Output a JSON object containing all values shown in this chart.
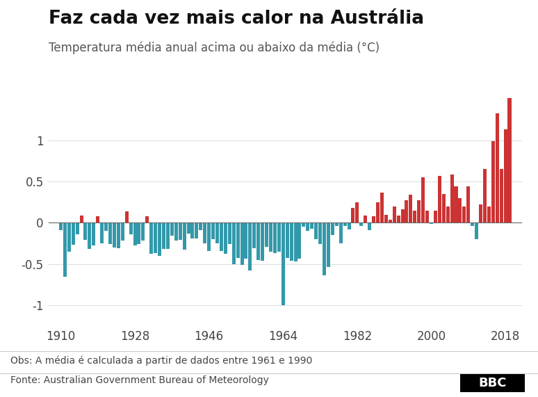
{
  "title": "Faz cada vez mais calor na Austrália",
  "subtitle": "Temperatura média anual acima ou abaixo da média (°C)",
  "note": "Obs: A média é calculada a partir de dados entre 1961 e 1990",
  "source": "Fonte: Australian Government Bureau of Meteorology",
  "logo": "BBC",
  "years": [
    1910,
    1911,
    1912,
    1913,
    1914,
    1915,
    1916,
    1917,
    1918,
    1919,
    1920,
    1921,
    1922,
    1923,
    1924,
    1925,
    1926,
    1927,
    1928,
    1929,
    1930,
    1931,
    1932,
    1933,
    1934,
    1935,
    1936,
    1937,
    1938,
    1939,
    1940,
    1941,
    1942,
    1943,
    1944,
    1945,
    1946,
    1947,
    1948,
    1949,
    1950,
    1951,
    1952,
    1953,
    1954,
    1955,
    1956,
    1957,
    1958,
    1959,
    1960,
    1961,
    1962,
    1963,
    1964,
    1965,
    1966,
    1967,
    1968,
    1969,
    1970,
    1971,
    1972,
    1973,
    1974,
    1975,
    1976,
    1977,
    1978,
    1979,
    1980,
    1981,
    1982,
    1983,
    1984,
    1985,
    1986,
    1987,
    1988,
    1989,
    1990,
    1991,
    1992,
    1993,
    1994,
    1995,
    1996,
    1997,
    1998,
    1999,
    2000,
    2001,
    2002,
    2003,
    2004,
    2005,
    2006,
    2007,
    2008,
    2009,
    2010,
    2011,
    2012,
    2013,
    2014,
    2015,
    2016,
    2017,
    2018,
    2019
  ],
  "anomalies": [
    -0.09,
    -0.66,
    -0.35,
    -0.27,
    -0.14,
    0.09,
    -0.21,
    -0.32,
    -0.28,
    0.08,
    -0.25,
    -0.1,
    -0.26,
    -0.3,
    -0.31,
    -0.22,
    0.14,
    -0.14,
    -0.28,
    -0.26,
    -0.22,
    0.08,
    -0.38,
    -0.37,
    -0.4,
    -0.32,
    -0.32,
    -0.16,
    -0.22,
    -0.21,
    -0.33,
    -0.13,
    -0.19,
    -0.19,
    -0.09,
    -0.25,
    -0.34,
    -0.2,
    -0.25,
    -0.34,
    -0.38,
    -0.26,
    -0.5,
    -0.43,
    -0.51,
    -0.44,
    -0.58,
    -0.31,
    -0.45,
    -0.46,
    -0.29,
    -0.35,
    -0.37,
    -0.35,
    -1.0,
    -0.43,
    -0.46,
    -0.47,
    -0.44,
    -0.05,
    -0.1,
    -0.07,
    -0.2,
    -0.26,
    -0.64,
    -0.54,
    -0.15,
    -0.04,
    -0.25,
    -0.04,
    -0.08,
    0.18,
    0.25,
    -0.04,
    0.09,
    -0.09,
    0.08,
    0.25,
    0.37,
    0.1,
    0.04,
    0.2,
    0.09,
    0.16,
    0.27,
    0.34,
    0.15,
    0.27,
    0.55,
    0.15,
    -0.01,
    0.15,
    0.57,
    0.35,
    0.2,
    0.59,
    0.44,
    0.3,
    0.2,
    0.44,
    -0.04,
    -0.2,
    0.22,
    0.65,
    0.2,
    0.99,
    1.33,
    0.65,
    1.14,
    1.52
  ],
  "color_positive": "#CC3333",
  "color_negative": "#3399AA",
  "background_color": "#FFFFFF",
  "ylim": [
    -1.25,
    1.55
  ],
  "yticks": [
    -1.0,
    -0.5,
    0,
    0.5,
    1.0
  ],
  "xtick_years": [
    1910,
    1928,
    1946,
    1964,
    1982,
    2000,
    2018
  ],
  "grid_color": "#E0E0E0",
  "title_fontsize": 19,
  "subtitle_fontsize": 12,
  "note_fontsize": 10,
  "source_fontsize": 10,
  "tick_fontsize": 12
}
